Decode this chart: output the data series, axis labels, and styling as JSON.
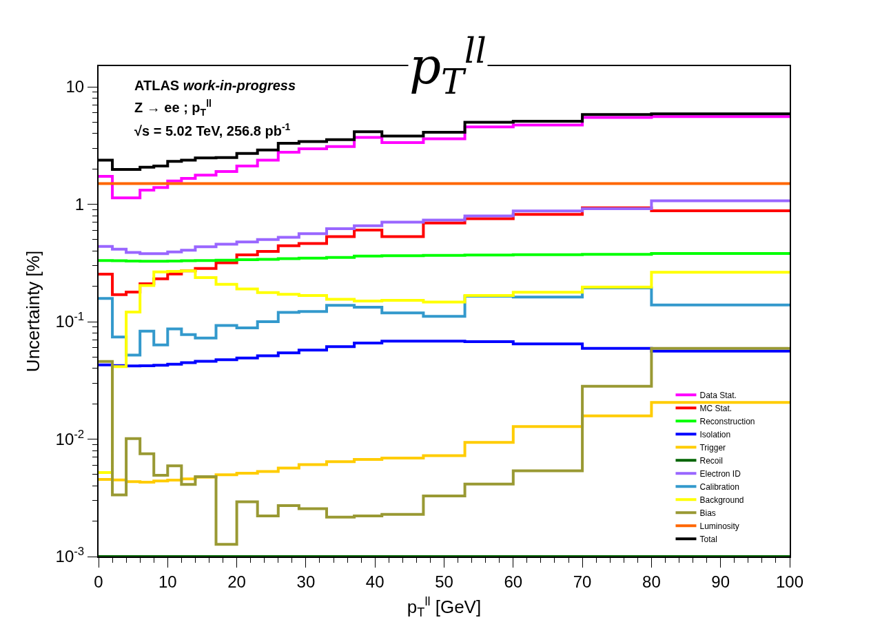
{
  "chart_data": {
    "type": "step",
    "title": "p$_{T}$$^{ll}$",
    "xlabel": "p$_{T}$$^{ll}$ [GeV]",
    "ylabel": "Uncertainty [%]",
    "annotations": [
      "ATLAS work-in-progress",
      "Z → ee ; p$_{T}$$^{ll}$",
      "√s = 5.02 TeV, 256.8 pb$^{-1}$"
    ],
    "x": [
      0,
      2,
      4,
      6,
      8,
      10,
      12,
      14,
      17,
      20,
      23,
      26,
      29,
      33,
      37,
      41,
      47,
      53,
      60,
      70,
      80,
      100
    ],
    "xlim": [
      0,
      100
    ],
    "ylim": [
      0.001,
      15
    ],
    "log": "y",
    "legend": "bottom right",
    "xticks": [
      0,
      {
        "value": 2,
        "label": null
      },
      {
        "value": 4,
        "label": null
      },
      {
        "value": 6,
        "label": null
      },
      {
        "value": 8,
        "label": null
      },
      10,
      {
        "value": 12,
        "label": null
      },
      {
        "value": 14,
        "label": null
      },
      {
        "value": 16,
        "label": null
      },
      {
        "value": 18,
        "label": null
      },
      20,
      {
        "value": 22,
        "label": null
      },
      {
        "value": 24,
        "label": null
      },
      {
        "value": 26,
        "label": null
      },
      {
        "value": 28,
        "label": null
      },
      30,
      {
        "value": 32,
        "label": null
      },
      {
        "value": 34,
        "label": null
      },
      {
        "value": 36,
        "label": null
      },
      {
        "value": 38,
        "label": null
      },
      40,
      {
        "value": 42,
        "label": null
      },
      {
        "value": 44,
        "label": null
      },
      {
        "value": 46,
        "label": null
      },
      {
        "value": 48,
        "label": null
      },
      50,
      {
        "value": 52,
        "label": null
      },
      {
        "value": 54,
        "label": null
      },
      {
        "value": 56,
        "label": null
      },
      {
        "value": 58,
        "label": null
      },
      60,
      {
        "value": 62,
        "label": null
      },
      {
        "value": 64,
        "label": null
      },
      {
        "value": 66,
        "label": null
      },
      {
        "value": 68,
        "label": null
      },
      70,
      {
        "value": 72,
        "label": null
      },
      {
        "value": 74,
        "label": null
      },
      {
        "value": 76,
        "label": null
      },
      {
        "value": 78,
        "label": null
      },
      80,
      {
        "value": 82,
        "label": null
      },
      {
        "value": 84,
        "label": null
      },
      {
        "value": 86,
        "label": null
      },
      {
        "value": 88,
        "label": null
      },
      90,
      {
        "value": 92,
        "label": null
      },
      {
        "value": 94,
        "label": null
      },
      {
        "value": 96,
        "label": null
      },
      {
        "value": 98,
        "label": null
      },
      100
    ],
    "yticks": [
      {
        "value": 0.001,
        "label": "10$^{-3}$"
      },
      {
        "value": 0.002,
        "label": null
      },
      {
        "value": 0.003,
        "label": null
      },
      {
        "value": 0.004,
        "label": null
      },
      {
        "value": 0.005,
        "label": null
      },
      {
        "value": 0.006,
        "label": null
      },
      {
        "value": 0.007,
        "label": null
      },
      {
        "value": 0.008,
        "label": null
      },
      {
        "value": 0.009,
        "label": null
      },
      {
        "value": 0.01,
        "label": "10$^{-2}$"
      },
      {
        "value": 0.02,
        "label": null
      },
      {
        "value": 0.03,
        "label": null
      },
      {
        "value": 0.04,
        "label": null
      },
      {
        "value": 0.05,
        "label": null
      },
      {
        "value": 0.06,
        "label": null
      },
      {
        "value": 0.07,
        "label": null
      },
      {
        "value": 0.08,
        "label": null
      },
      {
        "value": 0.09,
        "label": null
      },
      {
        "value": 0.1,
        "label": "10$^{-1}$"
      },
      {
        "value": 0.2,
        "label": null
      },
      {
        "value": 0.3,
        "label": null
      },
      {
        "value": 0.4,
        "label": null
      },
      {
        "value": 0.5,
        "label": null
      },
      {
        "value": 0.6,
        "label": null
      },
      {
        "value": 0.7,
        "label": null
      },
      {
        "value": 0.8,
        "label": null
      },
      {
        "value": 0.9,
        "label": null
      },
      1,
      {
        "value": 2,
        "label": null
      },
      {
        "value": 3,
        "label": null
      },
      {
        "value": 4,
        "label": null
      },
      {
        "value": 5,
        "label": null
      },
      {
        "value": 6,
        "label": null
      },
      {
        "value": 7,
        "label": null
      },
      {
        "value": 8,
        "label": null
      },
      {
        "value": 9,
        "label": null
      },
      10
    ],
    "series": [
      {
        "name": "Data Stat.",
        "color": "#ff00ff",
        "values": [
          1.73,
          1.135,
          1.135,
          1.32,
          1.39,
          1.58,
          1.66,
          1.77,
          1.9,
          2.12,
          2.37,
          2.77,
          2.97,
          3.1,
          3.71,
          3.35,
          3.61,
          4.56,
          4.72,
          5.48,
          5.57,
          5.57
        ]
      },
      {
        "name": "MC Stat.",
        "color": "#ff0000",
        "values": [
          0.254,
          0.17,
          0.179,
          0.21,
          0.232,
          0.255,
          0.271,
          0.284,
          0.317,
          0.371,
          0.396,
          0.443,
          0.463,
          0.53,
          0.603,
          0.531,
          0.693,
          0.754,
          0.82,
          0.933,
          0.881,
          0.881
        ]
      },
      {
        "name": "Reconstruction",
        "color": "#00ff00",
        "values": [
          0.332,
          0.33,
          0.328,
          0.327,
          0.327,
          0.328,
          0.33,
          0.332,
          0.334,
          0.337,
          0.34,
          0.344,
          0.348,
          0.352,
          0.362,
          0.365,
          0.367,
          0.37,
          0.372,
          0.375,
          0.381,
          0.381
        ]
      },
      {
        "name": "Isolation",
        "color": "#0000ff",
        "values": [
          0.0428,
          0.0423,
          0.042,
          0.0421,
          0.0425,
          0.0434,
          0.0448,
          0.046,
          0.0475,
          0.049,
          0.0512,
          0.0542,
          0.0573,
          0.0612,
          0.0657,
          0.0682,
          0.0682,
          0.0675,
          0.0646,
          0.0593,
          0.0561,
          0.0561
        ]
      },
      {
        "name": "Trigger",
        "color": "#ffcc00",
        "values": [
          0.00454,
          0.0045,
          0.00435,
          0.0043,
          0.0044,
          0.00448,
          0.00458,
          0.00475,
          0.00497,
          0.00512,
          0.00531,
          0.00568,
          0.00607,
          0.00643,
          0.00672,
          0.0069,
          0.00722,
          0.00938,
          0.0128,
          0.0158,
          0.0205,
          0.0205
        ]
      },
      {
        "name": "Recoil",
        "color": "#006400",
        "values": [
          0.001,
          0.001,
          0.001,
          0.001,
          0.001,
          0.001,
          0.001,
          0.001,
          0.001,
          0.001,
          0.001,
          0.001,
          0.001,
          0.001,
          0.001,
          0.001,
          0.001,
          0.001,
          0.001,
          0.001,
          0.001,
          0.001
        ]
      },
      {
        "name": "Electron ID",
        "color": "#9966ff",
        "values": [
          0.438,
          0.415,
          0.388,
          0.38,
          0.38,
          0.392,
          0.406,
          0.434,
          0.457,
          0.478,
          0.5,
          0.523,
          0.562,
          0.62,
          0.656,
          0.705,
          0.733,
          0.796,
          0.877,
          0.917,
          1.07,
          1.07
        ]
      },
      {
        "name": "Calibration",
        "color": "#3399cc",
        "values": [
          0.158,
          0.0741,
          0.0519,
          0.083,
          0.0635,
          0.0867,
          0.0777,
          0.0726,
          0.0927,
          0.0887,
          0.1,
          0.12,
          0.122,
          0.138,
          0.133,
          0.119,
          0.111,
          0.165,
          0.162,
          0.194,
          0.139,
          0.139
        ]
      },
      {
        "name": "Background",
        "color": "#ffff00",
        "values": [
          0.0052,
          0.0415,
          0.121,
          0.203,
          0.265,
          0.268,
          0.271,
          0.237,
          0.208,
          0.19,
          0.177,
          0.171,
          0.167,
          0.155,
          0.15,
          0.152,
          0.147,
          0.167,
          0.178,
          0.197,
          0.264,
          0.264
        ]
      },
      {
        "name": "Bias",
        "color": "#999933",
        "values": [
          0.0458,
          0.00335,
          0.0101,
          0.0075,
          0.00492,
          0.00593,
          0.00411,
          0.00479,
          0.00127,
          0.00293,
          0.00222,
          0.00272,
          0.00256,
          0.00217,
          0.00222,
          0.00229,
          0.00328,
          0.00415,
          0.00537,
          0.0282,
          0.0593,
          0.0593
        ]
      },
      {
        "name": "Luminosity",
        "color": "#ff6600",
        "values": [
          1.5,
          1.5,
          1.5,
          1.5,
          1.5,
          1.5,
          1.5,
          1.5,
          1.5,
          1.5,
          1.5,
          1.5,
          1.5,
          1.5,
          1.5,
          1.5,
          1.5,
          1.5,
          1.5,
          1.5,
          1.5,
          1.5
        ]
      },
      {
        "name": "Total",
        "color": "#000000",
        "values": [
          2.37,
          1.98,
          1.98,
          2.07,
          2.12,
          2.32,
          2.37,
          2.48,
          2.5,
          2.71,
          2.9,
          3.31,
          3.42,
          3.55,
          4.14,
          3.81,
          4.1,
          4.99,
          5.09,
          5.8,
          5.89,
          5.89
        ]
      }
    ]
  }
}
